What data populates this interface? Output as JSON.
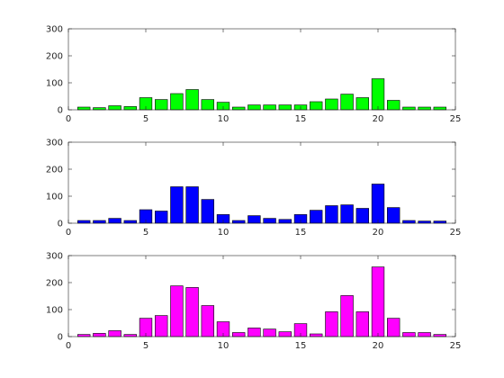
{
  "chart_data": [
    {
      "type": "bar",
      "color": "#00ff00",
      "x": [
        1,
        2,
        3,
        4,
        5,
        6,
        7,
        8,
        9,
        10,
        11,
        12,
        13,
        14,
        15,
        16,
        17,
        18,
        19,
        20,
        21,
        22,
        23,
        24
      ],
      "values": [
        10,
        8,
        15,
        12,
        45,
        38,
        60,
        75,
        38,
        28,
        10,
        18,
        18,
        18,
        18,
        30,
        40,
        58,
        45,
        115,
        35,
        10,
        10,
        10
      ],
      "xlim": [
        0,
        25
      ],
      "ylim": [
        0,
        300
      ],
      "xticks": [
        0,
        5,
        10,
        15,
        20,
        25
      ],
      "yticks": [
        0,
        100,
        200,
        300
      ]
    },
    {
      "type": "bar",
      "color": "#0000ff",
      "x": [
        1,
        2,
        3,
        4,
        5,
        6,
        7,
        8,
        9,
        10,
        11,
        12,
        13,
        14,
        15,
        16,
        17,
        18,
        19,
        20,
        21,
        22,
        23,
        24
      ],
      "values": [
        10,
        10,
        18,
        10,
        50,
        45,
        135,
        135,
        88,
        32,
        10,
        28,
        18,
        14,
        32,
        48,
        65,
        68,
        55,
        145,
        58,
        10,
        8,
        8
      ],
      "xlim": [
        0,
        25
      ],
      "ylim": [
        0,
        300
      ],
      "xticks": [
        0,
        5,
        10,
        15,
        20,
        25
      ],
      "yticks": [
        0,
        100,
        200,
        300
      ]
    },
    {
      "type": "bar",
      "color": "#ff00ff",
      "x": [
        1,
        2,
        3,
        4,
        5,
        6,
        7,
        8,
        9,
        10,
        11,
        12,
        13,
        14,
        15,
        16,
        17,
        18,
        19,
        20,
        21,
        22,
        23,
        24
      ],
      "values": [
        8,
        12,
        22,
        8,
        68,
        78,
        188,
        182,
        115,
        55,
        15,
        32,
        28,
        18,
        48,
        10,
        92,
        152,
        92,
        258,
        68,
        15,
        15,
        8
      ],
      "xlim": [
        0,
        25
      ],
      "ylim": [
        0,
        300
      ],
      "xticks": [
        0,
        5,
        10,
        15,
        20,
        25
      ],
      "yticks": [
        0,
        100,
        200,
        300
      ]
    }
  ]
}
